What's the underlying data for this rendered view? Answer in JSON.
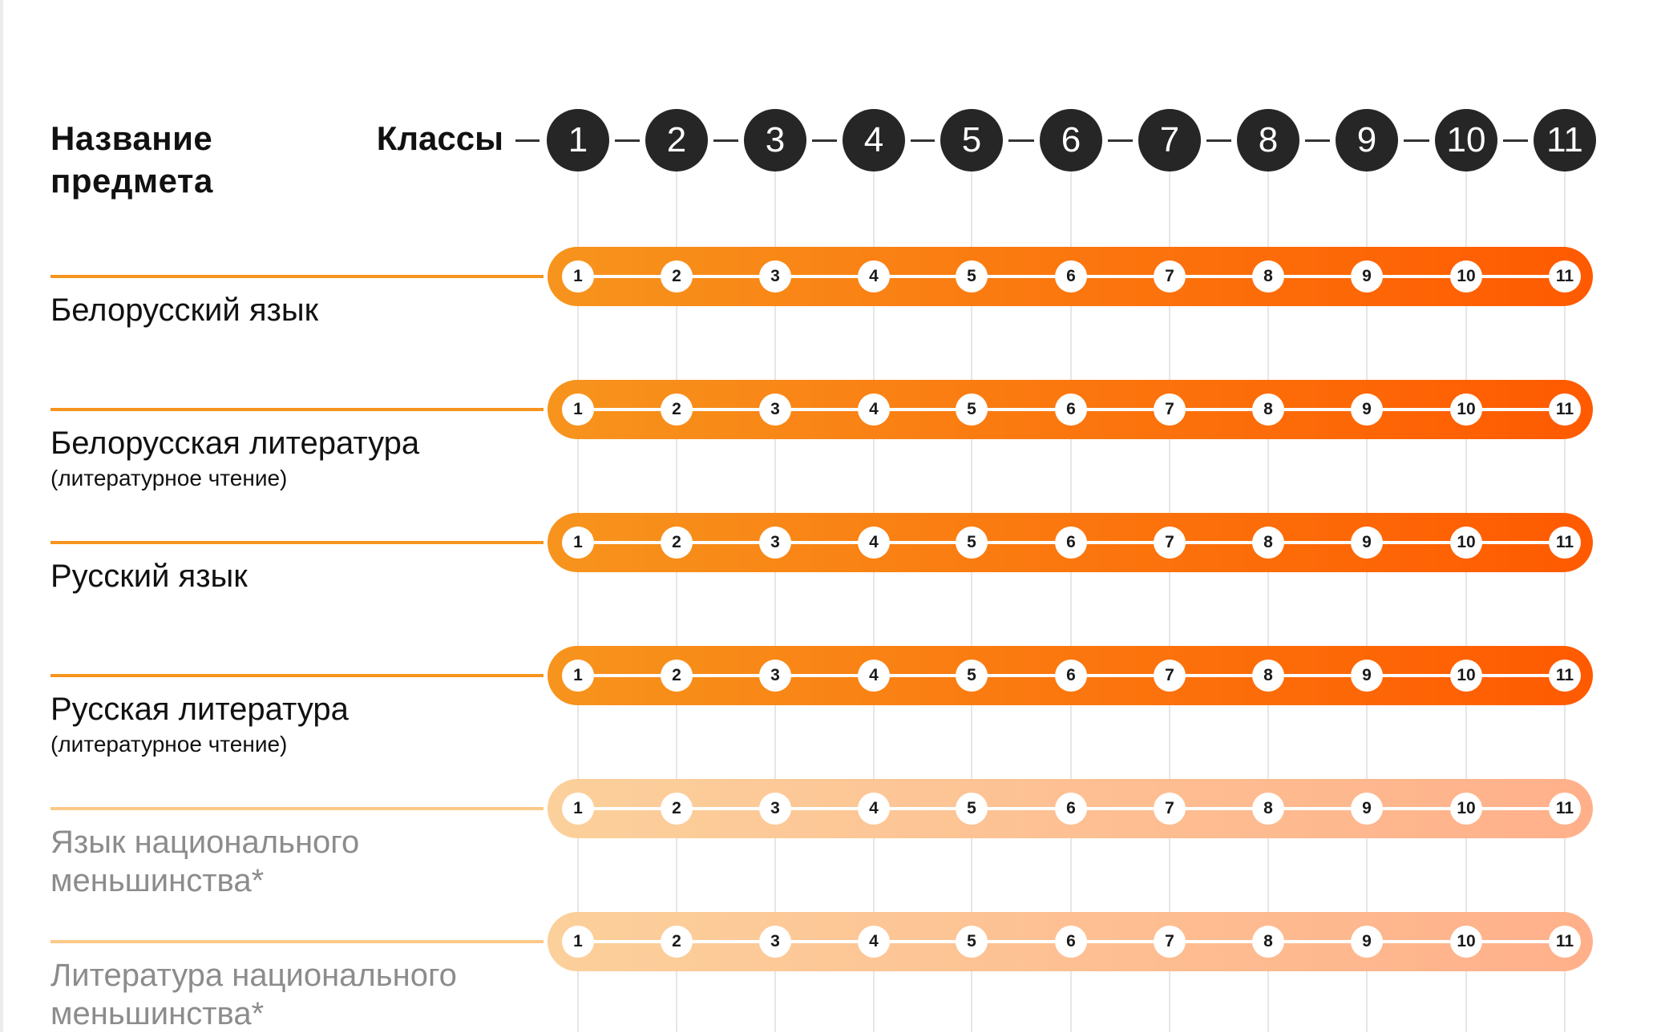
{
  "header": {
    "subject_title_line1": "Название",
    "subject_title_line2": "предмета",
    "classes_label": "Классы",
    "grades": [
      "1",
      "2",
      "3",
      "4",
      "5",
      "6",
      "7",
      "8",
      "9",
      "10",
      "11"
    ]
  },
  "colors": {
    "header_circle": "#262626",
    "required_gradient": [
      "#f7941d",
      "#ff5a00"
    ],
    "required_line": "#f7941d",
    "optional_gradient": [
      "#fcd09b",
      "#ffb08a"
    ],
    "optional_line": "#fcc888",
    "optional_text": "#8c8c8c"
  },
  "subjects": [
    {
      "name": "Белорусский язык",
      "note": "",
      "status": "required",
      "grades": [
        "1",
        "2",
        "3",
        "4",
        "5",
        "6",
        "7",
        "8",
        "9",
        "10",
        "11"
      ]
    },
    {
      "name": "Белорусская литература",
      "note": "(литературное чтение)",
      "status": "required",
      "grades": [
        "1",
        "2",
        "3",
        "4",
        "5",
        "6",
        "7",
        "8",
        "9",
        "10",
        "11"
      ]
    },
    {
      "name": "Русский язык",
      "note": "",
      "status": "required",
      "grades": [
        "1",
        "2",
        "3",
        "4",
        "5",
        "6",
        "7",
        "8",
        "9",
        "10",
        "11"
      ]
    },
    {
      "name": "Русская литература",
      "note": "(литературное чтение)",
      "status": "required",
      "grades": [
        "1",
        "2",
        "3",
        "4",
        "5",
        "6",
        "7",
        "8",
        "9",
        "10",
        "11"
      ]
    },
    {
      "name": "Язык национального\nменьшинства*",
      "note": "",
      "status": "optional",
      "grades": [
        "1",
        "2",
        "3",
        "4",
        "5",
        "6",
        "7",
        "8",
        "9",
        "10",
        "11"
      ]
    },
    {
      "name": "Литература национального\nменьшинства*",
      "note": "",
      "status": "optional",
      "grades": [
        "1",
        "2",
        "3",
        "4",
        "5",
        "6",
        "7",
        "8",
        "9",
        "10",
        "11"
      ]
    }
  ]
}
